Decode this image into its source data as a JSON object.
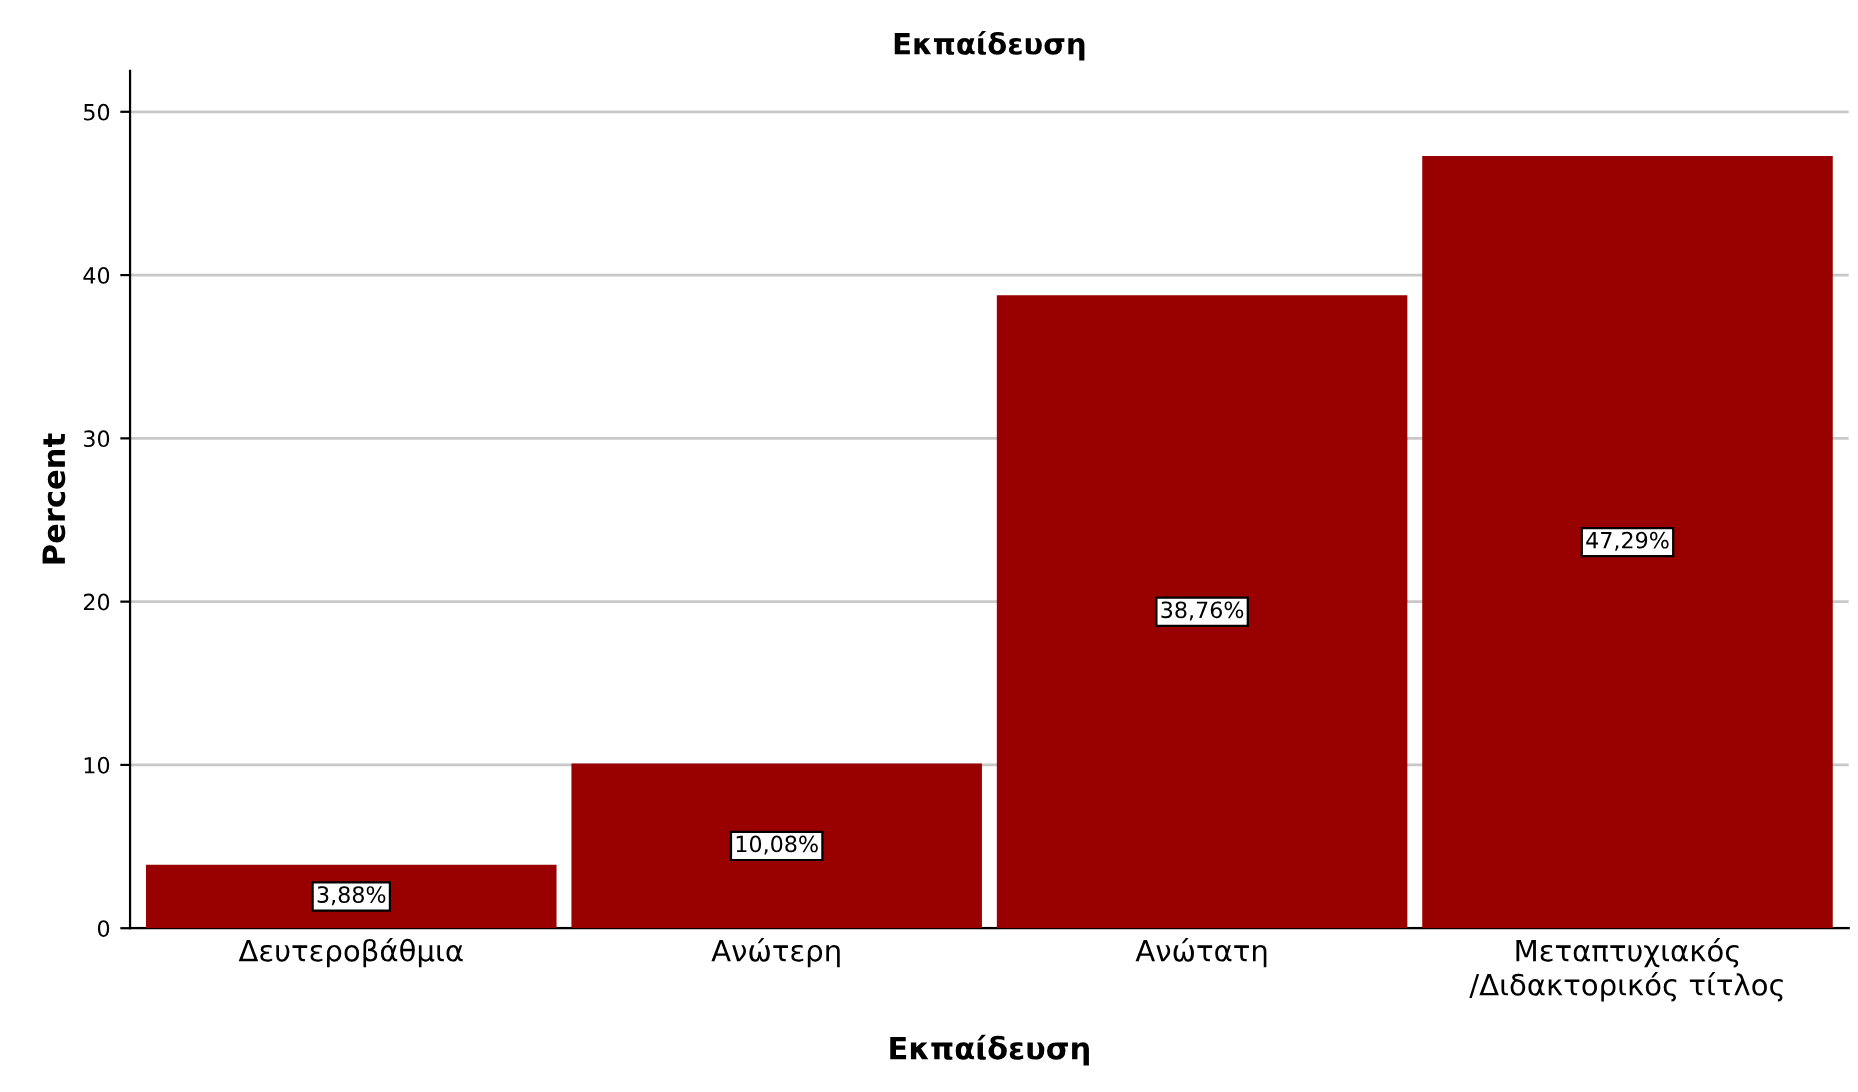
{
  "chart_data": {
    "type": "bar",
    "title": "Εκπαίδευση",
    "xlabel": "Εκπαίδευση",
    "ylabel": "Percent",
    "categories": [
      "Δευτεροβάθμια",
      "Ανώτερη",
      "Ανώτατη",
      "Μεταπτυχιακός\n/Διδακτορικός τίτλος"
    ],
    "values": [
      3.88,
      10.08,
      38.76,
      47.29
    ],
    "value_labels": [
      "3,88%",
      "10,08%",
      "38,76%",
      "47,29%"
    ],
    "color": "#990000",
    "ylim": [
      0,
      52.5
    ],
    "yticks": [
      0,
      10,
      20,
      30,
      40,
      50
    ],
    "grid": "y"
  }
}
